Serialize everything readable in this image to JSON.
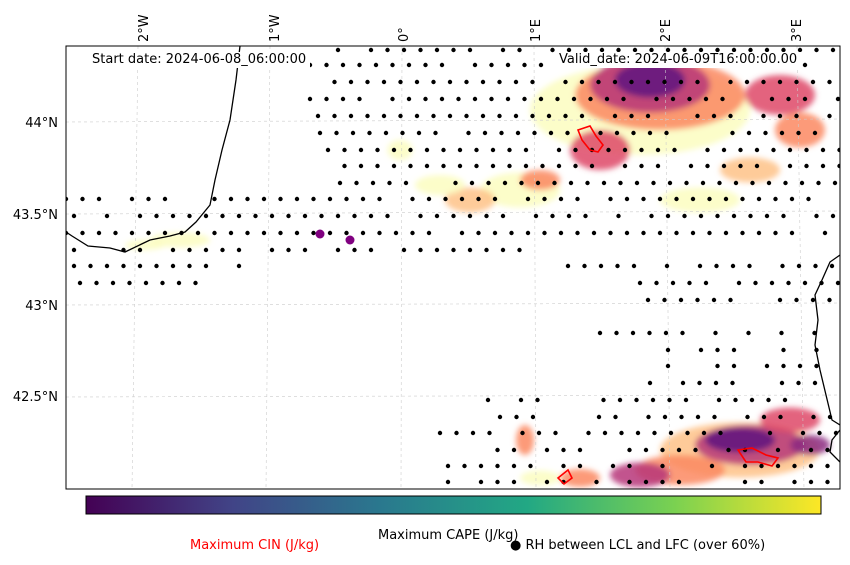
{
  "map": {
    "start_date": "Start date: 2024-06-08_06:00:00",
    "valid_date": "Valid_date: 2024-06-09T16:00:00.00",
    "lon_labels": [
      "2°W",
      "1°W",
      "0°",
      "1°E",
      "2°E",
      "3°E"
    ],
    "lat_labels": [
      "44°N",
      "43.5°N",
      "43°N",
      "42.5°N"
    ]
  },
  "legend": {
    "colorbar_label": "Maximum CAPE (J/kg)",
    "cin_label": "Maximum CIN (J/kg)",
    "rh_label": "RH between LCL and LFC (over 60%)",
    "cin_color": "#ff0000",
    "colormap": [
      "#3b0f70",
      "#414487",
      "#2a788e",
      "#22a884",
      "#7ad151",
      "#fde725"
    ]
  },
  "field_colormap": [
    "#fcfdbf",
    "#fec287",
    "#fb8861",
    "#de4968",
    "#b73779",
    "#8c2981",
    "#5f187f"
  ]
}
